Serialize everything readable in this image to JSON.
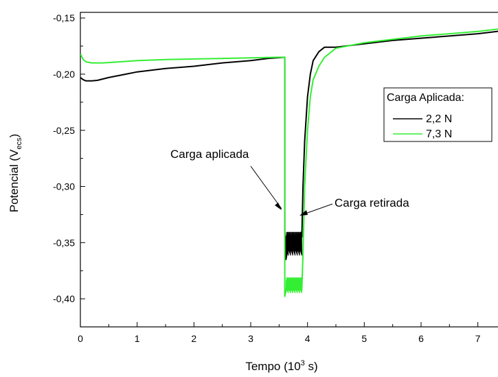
{
  "chart_data": {
    "type": "line",
    "xlabel": {
      "main": "Tempo (10",
      "sup": "3",
      "tail": " s)"
    },
    "ylabel": {
      "main": "Potencial (V",
      "sub": "ecs",
      "tail": ")"
    },
    "xlim": [
      0,
      7.5
    ],
    "ylim": [
      -0.425,
      -0.145
    ],
    "x_ticks": [
      0,
      1,
      2,
      3,
      4,
      5,
      6,
      7
    ],
    "x_tick_labels": [
      "0",
      "1",
      "2",
      "3",
      "4",
      "5",
      "6",
      "7"
    ],
    "y_ticks": [
      -0.4,
      -0.35,
      -0.3,
      -0.25,
      -0.2,
      -0.15
    ],
    "y_tick_labels": [
      "-0,40",
      "-0,35",
      "-0,30",
      "-0,25",
      "-0,20",
      "-0,15"
    ],
    "legend": {
      "title": "Carga Aplicada:",
      "placement": "right"
    },
    "series": [
      {
        "name": "2,2 N",
        "color": "#000000",
        "points": [
          [
            0,
            -0.203
          ],
          [
            0.05,
            -0.205
          ],
          [
            0.1,
            -0.206
          ],
          [
            0.2,
            -0.206
          ],
          [
            0.3,
            -0.2055
          ],
          [
            0.5,
            -0.203
          ],
          [
            0.8,
            -0.2
          ],
          [
            1.0,
            -0.198
          ],
          [
            1.5,
            -0.195
          ],
          [
            2.0,
            -0.193
          ],
          [
            2.5,
            -0.19
          ],
          [
            3.0,
            -0.188
          ],
          [
            3.3,
            -0.186
          ],
          [
            3.6,
            -0.185
          ],
          [
            3.6,
            -0.34
          ],
          [
            3.62,
            -0.365
          ],
          [
            3.65,
            -0.356
          ],
          [
            3.7,
            -0.35
          ],
          [
            3.75,
            -0.348
          ],
          [
            3.8,
            -0.346
          ],
          [
            3.85,
            -0.343
          ],
          [
            3.88,
            -0.341
          ],
          [
            3.9,
            -0.345
          ],
          [
            3.92,
            -0.3
          ],
          [
            3.95,
            -0.26
          ],
          [
            4.0,
            -0.22
          ],
          [
            4.05,
            -0.2
          ],
          [
            4.1,
            -0.188
          ],
          [
            4.2,
            -0.18
          ],
          [
            4.3,
            -0.176
          ],
          [
            4.5,
            -0.176
          ],
          [
            5.0,
            -0.173
          ],
          [
            5.5,
            -0.17
          ],
          [
            6.0,
            -0.168
          ],
          [
            6.5,
            -0.166
          ],
          [
            7.0,
            -0.164
          ],
          [
            7.5,
            -0.161
          ]
        ],
        "noise_band": {
          "x_from": 3.62,
          "x_to": 3.9,
          "low": -0.366,
          "high": -0.336
        }
      },
      {
        "name": "7,3 N",
        "color": "#33ee33",
        "points": [
          [
            0,
            -0.182
          ],
          [
            0.05,
            -0.187
          ],
          [
            0.1,
            -0.189
          ],
          [
            0.2,
            -0.19
          ],
          [
            0.4,
            -0.19
          ],
          [
            0.7,
            -0.189
          ],
          [
            1.0,
            -0.188
          ],
          [
            1.5,
            -0.187
          ],
          [
            2.0,
            -0.1865
          ],
          [
            2.5,
            -0.186
          ],
          [
            3.0,
            -0.1855
          ],
          [
            3.5,
            -0.185
          ],
          [
            3.6,
            -0.185
          ],
          [
            3.6,
            -0.398
          ],
          [
            3.63,
            -0.39
          ],
          [
            3.7,
            -0.387
          ],
          [
            3.8,
            -0.388
          ],
          [
            3.88,
            -0.389
          ],
          [
            3.9,
            -0.392
          ],
          [
            3.92,
            -0.36
          ],
          [
            3.95,
            -0.3
          ],
          [
            4.0,
            -0.25
          ],
          [
            4.05,
            -0.22
          ],
          [
            4.1,
            -0.205
          ],
          [
            4.2,
            -0.193
          ],
          [
            4.3,
            -0.185
          ],
          [
            4.4,
            -0.181
          ],
          [
            4.5,
            -0.177
          ],
          [
            5.0,
            -0.172
          ],
          [
            5.5,
            -0.169
          ],
          [
            6.0,
            -0.166
          ],
          [
            6.5,
            -0.164
          ],
          [
            7.0,
            -0.162
          ],
          [
            7.5,
            -0.159
          ]
        ],
        "noise_band": {
          "x_from": 3.62,
          "x_to": 3.9,
          "low": -0.398,
          "high": -0.378
        }
      }
    ],
    "annotations": [
      {
        "text": "Carga aplicada",
        "target": [
          3.6,
          -0.34
        ]
      },
      {
        "text": "Carga retirada",
        "target": [
          3.9,
          -0.34
        ]
      }
    ]
  }
}
